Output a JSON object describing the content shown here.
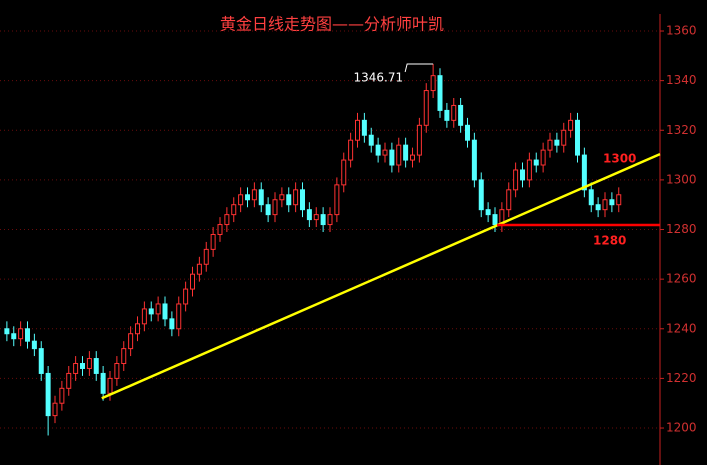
{
  "chart_data": {
    "type": "candlestick",
    "title": "黄金日线走势图——分析师叶凯",
    "xlim": [
      -1,
      95
    ],
    "ylim": [
      1185.1,
      1372.5
    ],
    "yticks": [
      1200,
      1220,
      1240,
      1260,
      1280,
      1300,
      1320,
      1340,
      1360
    ],
    "grid": true,
    "up_color": "#ff3232",
    "down_color": "#54ffff",
    "open": [
      1240,
      1238,
      1236,
      1240,
      1235,
      1232,
      1222,
      1205,
      1210,
      1216,
      1222,
      1226,
      1224,
      1228,
      1222,
      1214,
      1220,
      1226,
      1232,
      1238,
      1242,
      1248,
      1246,
      1250,
      1244,
      1240,
      1250,
      1256,
      1262,
      1266,
      1272,
      1278,
      1282,
      1286,
      1290,
      1294,
      1292,
      1296,
      1290,
      1286,
      1292,
      1294,
      1290,
      1296,
      1288,
      1284,
      1286,
      1282,
      1286,
      1298,
      1308,
      1316,
      1324,
      1318,
      1314,
      1310,
      1312,
      1306,
      1314,
      1308,
      1310,
      1322,
      1336,
      1342,
      1328,
      1324,
      1330,
      1322,
      1316,
      1300,
      1288,
      1286,
      1282,
      1288,
      1296,
      1304,
      1300,
      1308,
      1306,
      1312,
      1316,
      1314,
      1320,
      1324,
      1310,
      1296,
      1290,
      1288,
      1292,
      1290
    ],
    "high": [
      1243,
      1241,
      1243,
      1243,
      1238,
      1235,
      1225,
      1213,
      1219,
      1225,
      1229,
      1229,
      1231,
      1231,
      1225,
      1223,
      1229,
      1235,
      1241,
      1245,
      1251,
      1251,
      1253,
      1253,
      1247,
      1253,
      1259,
      1265,
      1269,
      1275,
      1281,
      1285,
      1289,
      1293,
      1297,
      1297,
      1299,
      1299,
      1293,
      1295,
      1297,
      1297,
      1299,
      1299,
      1291,
      1289,
      1289,
      1289,
      1301,
      1311,
      1319,
      1327,
      1327,
      1321,
      1317,
      1315,
      1315,
      1317,
      1317,
      1313,
      1325,
      1339,
      1346.71,
      1345,
      1331,
      1333,
      1333,
      1325,
      1319,
      1303,
      1291,
      1289,
      1291,
      1299,
      1307,
      1307,
      1311,
      1311,
      1315,
      1319,
      1319,
      1323,
      1327,
      1327,
      1313,
      1299,
      1293,
      1295,
      1295,
      1297
    ],
    "low": [
      1235,
      1233,
      1233,
      1232,
      1229,
      1219,
      1197,
      1202,
      1207,
      1213,
      1219,
      1221,
      1221,
      1219,
      1211,
      1211,
      1217,
      1223,
      1229,
      1235,
      1239,
      1243,
      1243,
      1241,
      1237,
      1237,
      1247,
      1253,
      1259,
      1263,
      1269,
      1275,
      1279,
      1283,
      1287,
      1289,
      1289,
      1287,
      1283,
      1283,
      1289,
      1287,
      1287,
      1285,
      1281,
      1281,
      1279,
      1279,
      1283,
      1295,
      1305,
      1313,
      1315,
      1311,
      1307,
      1307,
      1303,
      1303,
      1305,
      1305,
      1307,
      1319,
      1333,
      1325,
      1321,
      1321,
      1319,
      1313,
      1297,
      1285,
      1283,
      1279,
      1279,
      1285,
      1293,
      1297,
      1297,
      1303,
      1303,
      1309,
      1311,
      1311,
      1317,
      1307,
      1293,
      1287,
      1285,
      1285,
      1287,
      1287
    ],
    "close": [
      1238,
      1236,
      1240,
      1235,
      1232,
      1222,
      1205,
      1210,
      1216,
      1222,
      1226,
      1224,
      1228,
      1222,
      1214,
      1220,
      1226,
      1232,
      1238,
      1242,
      1248,
      1246,
      1250,
      1244,
      1240,
      1250,
      1256,
      1262,
      1266,
      1272,
      1278,
      1282,
      1286,
      1290,
      1294,
      1292,
      1296,
      1290,
      1286,
      1292,
      1294,
      1290,
      1296,
      1288,
      1284,
      1286,
      1282,
      1286,
      1298,
      1308,
      1316,
      1324,
      1318,
      1314,
      1310,
      1312,
      1306,
      1314,
      1308,
      1310,
      1322,
      1336,
      1342,
      1328,
      1324,
      1330,
      1322,
      1316,
      1300,
      1288,
      1286,
      1282,
      1288,
      1296,
      1304,
      1300,
      1308,
      1306,
      1312,
      1316,
      1314,
      1320,
      1324,
      1310,
      1296,
      1290,
      1288,
      1292,
      1290,
      1294
    ],
    "lines": [
      {
        "x": [
          13.8,
          95
        ],
        "y": [
          1212,
          1310.4
        ],
        "color": "#ffff00"
      },
      {
        "x": [
          71.3,
          95
        ],
        "y": [
          1281.8,
          1281.8
        ],
        "color": "#ff0000"
      }
    ],
    "peak_label": "1346.71",
    "annotations": [
      "1300",
      "1280"
    ]
  }
}
